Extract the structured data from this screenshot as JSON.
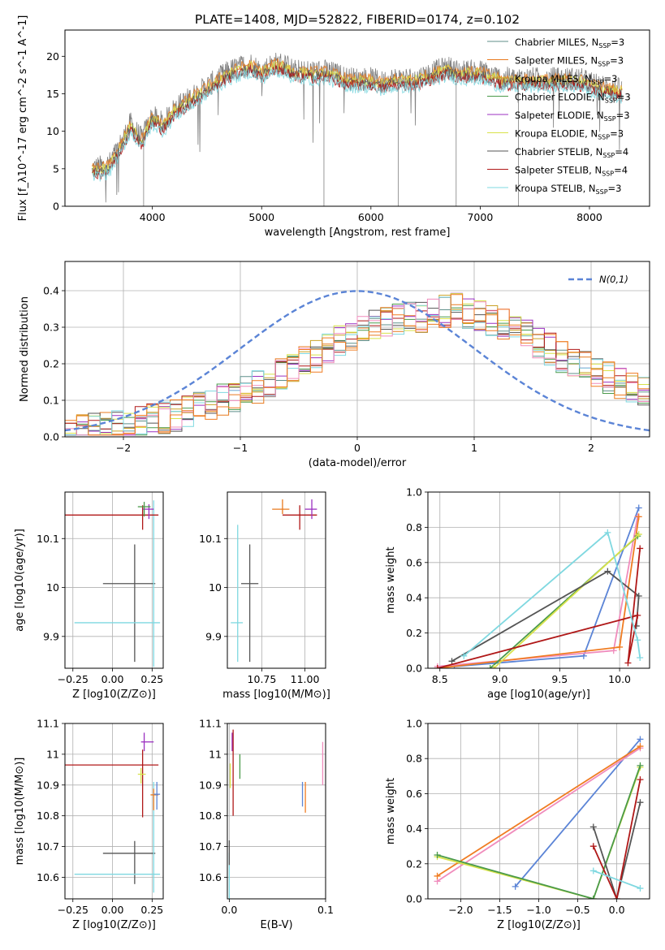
{
  "figure": {
    "title": "PLATE=1408, MJD=52822, FIBERID=0174, z=0.102"
  },
  "palette": {
    "Chabrier MILES": "#5f8f8a",
    "Salpeter MILES": "#e87a1e",
    "Kroupa MILES": "#c9a227",
    "Chabrier ELODIE": "#4a9a4a",
    "Salpeter ELODIE": "#9b30c0",
    "Kroupa ELODIE": "#d8e24a",
    "Chabrier STELIB": "#555555",
    "Salpeter STELIB": "#b01818",
    "Kroupa STELIB": "#7fd8e0",
    "spectrum": "#808080",
    "gaussian": "#5b84d6",
    "pink": "#f08cbc",
    "orange": "#f07c22",
    "blue": "#5b84d6"
  },
  "chart_data": [
    {
      "type": "line",
      "panel": "spectrum",
      "xlabel": "wavelength [Angstrom, rest frame]",
      "ylabel": "Flux [f_λ10^-17 erg cm^-2 s^-1 A^-1]",
      "xlim": [
        3200,
        8550
      ],
      "ylim": [
        0,
        23.5
      ],
      "xticks": [
        4000,
        5000,
        6000,
        7000,
        8000
      ],
      "yticks": [
        0,
        5,
        10,
        15,
        20
      ],
      "legend_position": "upper right",
      "legend": [
        "Chabrier MILES, N_SSP=3",
        "Salpeter MILES, N_SSP=3",
        "Kroupa MILES, N_SSP=3",
        "Chabrier ELODIE, N_SSP=3",
        "Salpeter ELODIE, N_SSP=3",
        "Kroupa ELODIE, N_SSP=3",
        "Chabrier STELIB, N_SSP=4",
        "Salpeter STELIB, N_SSP=4",
        "Kroupa STELIB, N_SSP=3"
      ],
      "spectrum_knots": [
        [
          3450,
          5
        ],
        [
          3600,
          5.5
        ],
        [
          3700,
          8
        ],
        [
          3800,
          11
        ],
        [
          3900,
          9
        ],
        [
          4000,
          12
        ],
        [
          4100,
          11
        ],
        [
          4200,
          13
        ],
        [
          4300,
          14
        ],
        [
          4400,
          15
        ],
        [
          4500,
          16
        ],
        [
          4600,
          17
        ],
        [
          4700,
          18
        ],
        [
          4800,
          18.5
        ],
        [
          4900,
          19
        ],
        [
          5000,
          18
        ],
        [
          5100,
          19
        ],
        [
          5200,
          19
        ],
        [
          5300,
          18
        ],
        [
          5400,
          18
        ],
        [
          5500,
          18
        ],
        [
          5600,
          18
        ],
        [
          5700,
          17.5
        ],
        [
          5800,
          17
        ],
        [
          5900,
          17
        ],
        [
          6000,
          17
        ],
        [
          6100,
          16.5
        ],
        [
          6200,
          17
        ],
        [
          6300,
          17
        ],
        [
          6400,
          17
        ],
        [
          6500,
          17.5
        ],
        [
          6600,
          18
        ],
        [
          6700,
          18.5
        ],
        [
          6800,
          18
        ],
        [
          6900,
          18
        ],
        [
          7000,
          18
        ],
        [
          7100,
          17.5
        ],
        [
          7200,
          17
        ],
        [
          7300,
          17
        ],
        [
          7400,
          17
        ],
        [
          7500,
          17
        ],
        [
          7700,
          17
        ],
        [
          7900,
          17
        ],
        [
          8100,
          16
        ],
        [
          8300,
          15.5
        ]
      ],
      "model_range": [
        3450,
        8300
      ],
      "spike_drops_x": [
        3920,
        5570,
        6250,
        6780,
        7350
      ]
    },
    {
      "type": "area",
      "panel": "residual-histogram",
      "xlabel": "(data-model)/error",
      "ylabel": "Normed distribution",
      "xlim": [
        -2.5,
        2.5
      ],
      "ylim": [
        0,
        0.48
      ],
      "xticks": [
        -2,
        -1,
        0,
        1,
        2
      ],
      "yticks": [
        0,
        0.1,
        0.2,
        0.3,
        0.4
      ],
      "legend_position": "upper right",
      "legend": [
        "N(0,1)"
      ],
      "bin_width": 0.1,
      "envelope_bin_centers": [
        -2.45,
        -2.15,
        -1.85,
        -1.55,
        -1.25,
        -0.95,
        -0.65,
        -0.35,
        -0.05,
        0.25,
        0.55,
        0.85,
        1.15,
        1.45,
        1.75,
        2.05,
        2.35
      ],
      "envelope_values": [
        0.015,
        0.025,
        0.04,
        0.06,
        0.09,
        0.12,
        0.17,
        0.22,
        0.28,
        0.32,
        0.33,
        0.35,
        0.32,
        0.28,
        0.22,
        0.18,
        0.13
      ]
    },
    {
      "type": "scatter",
      "panel": "age-vs-Z",
      "xlabel": "Z [log10(Z/Z⊙)]",
      "ylabel": "age  [log10(age/yr)]",
      "xlim": [
        -0.3,
        0.32
      ],
      "ylim": [
        9.835,
        10.195
      ],
      "xticks": [
        -0.25,
        0,
        0.25
      ],
      "xticklabels": [
        "−0.25",
        "0.00",
        "0.25"
      ],
      "yticks": [
        9.9,
        10.0,
        10.1
      ],
      "points": [
        {
          "model": "Chabrier STELIB",
          "x": 0.14,
          "y": 10.008,
          "xerr": [
            0.2,
            0.13
          ],
          "yerr": [
            0.16,
            0.08
          ]
        },
        {
          "model": "Kroupa STELIB",
          "x": 0.26,
          "y": 9.928,
          "xerr": [
            0.5,
            0.04
          ],
          "yerr": [
            0.09,
            0.25
          ]
        },
        {
          "model": "Salpeter STELIB",
          "x": 0.19,
          "y": 10.148,
          "xerr": [
            0.5,
            0.1
          ],
          "yerr": [
            0.03,
            0.02
          ]
        },
        {
          "model": "Salpeter ELODIE",
          "x": 0.23,
          "y": 10.16,
          "xerr": [
            0.04,
            0.03
          ],
          "yerr": [
            0.02,
            0.01
          ]
        },
        {
          "model": "Chabrier ELODIE",
          "x": 0.2,
          "y": 10.165,
          "xerr": [
            0.04,
            0.04
          ],
          "yerr": [
            0.02,
            0.01
          ]
        }
      ]
    },
    {
      "type": "scatter",
      "panel": "age-vs-mass",
      "xlabel": "mass [log10(M/M⊙)]",
      "ylabel": "",
      "xlim": [
        10.55,
        11.12
      ],
      "ylim": [
        9.835,
        10.195
      ],
      "xticks": [
        10.75,
        11.0
      ],
      "xticklabels": [
        "10.75",
        "11.00"
      ],
      "yticks": [
        9.9,
        10.0,
        10.1
      ],
      "points": [
        {
          "model": "Chabrier STELIB",
          "x": 10.68,
          "y": 10.008,
          "xerr": [
            0.05,
            0.05
          ],
          "yerr": [
            0.16,
            0.08
          ]
        },
        {
          "model": "Kroupa STELIB",
          "x": 10.61,
          "y": 9.928,
          "xerr": [
            0.04,
            0.03
          ],
          "yerr": [
            0.08,
            0.2
          ]
        },
        {
          "model": "Salpeter STELIB",
          "x": 10.97,
          "y": 10.148,
          "xerr": [
            0.1,
            0.1
          ],
          "yerr": [
            0.03,
            0.02
          ]
        },
        {
          "model": "Salpeter ELODIE",
          "x": 11.04,
          "y": 10.16,
          "xerr": [
            0.04,
            0.03
          ],
          "yerr": [
            0.02,
            0.02
          ]
        },
        {
          "model": "Salpeter MILES",
          "x": 10.87,
          "y": 10.16,
          "xerr": [
            0.06,
            0.04
          ],
          "yerr": [
            0.01,
            0.02
          ]
        }
      ]
    },
    {
      "type": "line",
      "panel": "massweight-vs-age",
      "xlabel": "age  [log10(age/yr)]",
      "ylabel": "mass weight",
      "xlim": [
        8.4,
        10.25
      ],
      "ylim": [
        0,
        1
      ],
      "xticks": [
        8.5,
        9.0,
        9.5,
        10.0
      ],
      "xticklabels": [
        "8.5",
        "9.0",
        "9.5",
        "10.0"
      ],
      "yticks": [
        0,
        0.2,
        0.4,
        0.6,
        0.8,
        1.0
      ],
      "series": [
        {
          "model": "blue",
          "x": [
            8.62,
            9.7,
            10.16
          ],
          "y": [
            0.01,
            0.07,
            0.91
          ]
        },
        {
          "model": "pink",
          "x": [
            8.48,
            9.95,
            10.15
          ],
          "y": [
            0.01,
            0.1,
            0.86
          ]
        },
        {
          "model": "orange",
          "x": [
            8.48,
            10.0,
            10.16
          ],
          "y": [
            0.0,
            0.12,
            0.86
          ]
        },
        {
          "model": "Chabrier ELODIE",
          "x": [
            8.92,
            10.15
          ],
          "y": [
            0.0,
            0.75
          ]
        },
        {
          "model": "Kroupa ELODIE",
          "x": [
            8.95,
            10.16
          ],
          "y": [
            0.0,
            0.76
          ]
        },
        {
          "model": "Chabrier STELIB",
          "x": [
            8.6,
            9.9,
            10.16,
            10.14
          ],
          "y": [
            0.04,
            0.55,
            0.41,
            0.24
          ]
        },
        {
          "model": "Salpeter STELIB",
          "x": [
            8.48,
            10.15,
            10.07,
            10.17
          ],
          "y": [
            0.0,
            0.3,
            0.03,
            0.68
          ]
        },
        {
          "model": "Kroupa STELIB",
          "x": [
            8.7,
            9.9,
            10.15,
            10.17
          ],
          "y": [
            0.07,
            0.77,
            0.16,
            0.06
          ]
        }
      ]
    },
    {
      "type": "scatter",
      "panel": "mass-vs-Z",
      "xlabel": "Z [log10(Z/Z⊙)]",
      "ylabel": "mass [log10(M/M⊙)]",
      "xlim": [
        -0.3,
        0.32
      ],
      "ylim": [
        10.53,
        11.1
      ],
      "xticks": [
        -0.25,
        0,
        0.25
      ],
      "xticklabels": [
        "−0.25",
        "0.00",
        "0.25"
      ],
      "yticks": [
        10.6,
        10.7,
        10.8,
        10.9,
        11.0,
        11.1
      ],
      "points": [
        {
          "model": "Chabrier STELIB",
          "x": 0.14,
          "y": 10.678,
          "xerr": [
            0.2,
            0.13
          ],
          "yerr": [
            0.1,
            0.04
          ]
        },
        {
          "model": "Kroupa STELIB",
          "x": 0.26,
          "y": 10.61,
          "xerr": [
            0.5,
            0.04
          ],
          "yerr": [
            0.06,
            0.3
          ]
        },
        {
          "model": "Salpeter STELIB",
          "x": 0.19,
          "y": 10.965,
          "xerr": [
            0.5,
            0.1
          ],
          "yerr": [
            0.17,
            0.05
          ]
        },
        {
          "model": "Salpeter ELODIE",
          "x": 0.2,
          "y": 11.04,
          "xerr": [
            0.02,
            0.06
          ],
          "yerr": [
            0.03,
            0.03
          ]
        },
        {
          "model": "Salpeter MILES",
          "x": 0.26,
          "y": 10.868,
          "xerr": [
            0.02,
            0.03
          ],
          "yerr": [
            0.05,
            0.02
          ]
        },
        {
          "model": "Kroupa ELODIE",
          "x": 0.18,
          "y": 10.935,
          "xerr": [
            0.02,
            0.03
          ],
          "yerr": [
            0.03,
            0.02
          ]
        },
        {
          "model": "blue",
          "x": 0.28,
          "y": 10.87,
          "xerr": [
            0.02,
            0.02
          ],
          "yerr": [
            0.05,
            0.04
          ]
        }
      ]
    },
    {
      "type": "scatter",
      "panel": "mass-vs-ebv",
      "xlabel": "E(B-V)",
      "ylabel": "",
      "xlim": [
        -0.002,
        0.1
      ],
      "ylim": [
        10.53,
        11.1
      ],
      "xticks": [
        0.0,
        0.1
      ],
      "xticklabels": [
        "0.0",
        "0.1"
      ],
      "yticks": [
        10.6,
        10.7,
        10.8,
        10.9,
        11.0,
        11.1
      ],
      "points": [
        {
          "model": "Kroupa STELIB",
          "x": 0.0,
          "y": 10.6,
          "yerr": [
            0.07,
            0.08
          ]
        },
        {
          "model": "Chabrier STELIB",
          "x": 0.0,
          "y": 10.68,
          "yerr": [
            0.04,
            0.04
          ]
        },
        {
          "model": "Kroupa ELODIE",
          "x": 0.001,
          "y": 10.93,
          "yerr": [
            0.04,
            0.04
          ]
        },
        {
          "model": "Salpeter ELODIE",
          "x": 0.003,
          "y": 11.04,
          "yerr": [
            0.03,
            0.03
          ]
        },
        {
          "model": "Salpeter STELIB",
          "x": 0.004,
          "y": 10.95,
          "yerr": [
            0.15,
            0.13
          ]
        },
        {
          "model": "Chabrier ELODIE",
          "x": 0.011,
          "y": 10.96,
          "yerr": [
            0.04,
            0.04
          ]
        },
        {
          "model": "blue",
          "x": 0.076,
          "y": 10.87,
          "yerr": [
            0.04,
            0.04
          ]
        },
        {
          "model": "orange",
          "x": 0.079,
          "y": 10.87,
          "yerr": [
            0.06,
            0.04
          ]
        },
        {
          "model": "pink",
          "x": 0.097,
          "y": 11.0,
          "yerr": [
            0.1,
            0.04
          ]
        }
      ]
    },
    {
      "type": "line",
      "panel": "massweight-vs-Z",
      "xlabel": "Z [log10(Z/Z⊙)]",
      "ylabel": "mass weight",
      "xlim": [
        -2.42,
        0.42
      ],
      "ylim": [
        0,
        1
      ],
      "xticks": [
        -2.0,
        -1.5,
        -1.0,
        -0.5,
        0.0
      ],
      "xticklabels": [
        "−2.0",
        "−1.5",
        "−1.0",
        "−0.5",
        "0.0"
      ],
      "yticks": [
        0,
        0.2,
        0.4,
        0.6,
        0.8,
        1.0
      ],
      "series": [
        {
          "model": "blue",
          "x": [
            -1.3,
            0.3
          ],
          "y": [
            0.07,
            0.91
          ]
        },
        {
          "model": "pink",
          "x": [
            -2.3,
            0.3
          ],
          "y": [
            0.1,
            0.86
          ]
        },
        {
          "model": "orange",
          "x": [
            -2.3,
            0.3
          ],
          "y": [
            0.13,
            0.87
          ]
        },
        {
          "model": "Kroupa ELODIE",
          "x": [
            -2.3,
            -0.3,
            0.3
          ],
          "y": [
            0.24,
            0.0,
            0.75
          ]
        },
        {
          "model": "Chabrier ELODIE",
          "x": [
            -2.3,
            -0.3,
            0.3
          ],
          "y": [
            0.25,
            0.0,
            0.76
          ]
        },
        {
          "model": "Chabrier STELIB",
          "x": [
            -0.3,
            0.0,
            0.3
          ],
          "y": [
            0.41,
            0.0,
            0.55
          ]
        },
        {
          "model": "Salpeter STELIB",
          "x": [
            -0.3,
            0.0,
            0.3
          ],
          "y": [
            0.3,
            0.0,
            0.68
          ]
        },
        {
          "model": "Kroupa STELIB",
          "x": [
            -0.3,
            0.3
          ],
          "y": [
            0.16,
            0.06
          ]
        }
      ]
    }
  ]
}
